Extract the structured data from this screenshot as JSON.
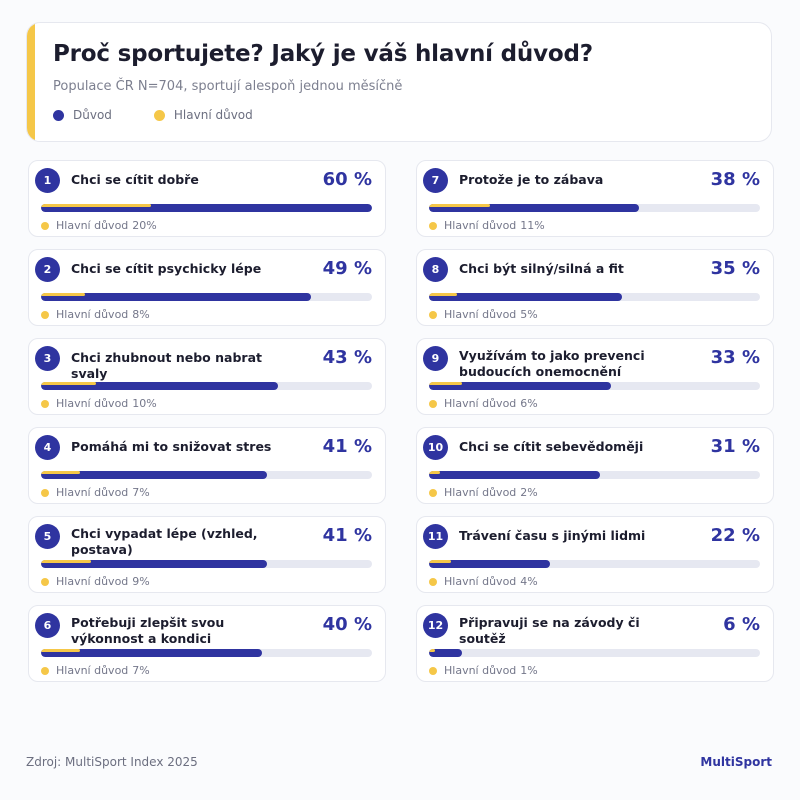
{
  "header": {
    "title": "Proč sportujete? Jaký je váš hlavní důvod?",
    "subtitle": "Populace ČR N=704, sportují alespoň jednou měsíčně"
  },
  "legend": [
    {
      "label": "Důvod",
      "color": "#2f34a0"
    },
    {
      "label": "Hlavní důvod",
      "color": "#f5c748"
    }
  ],
  "chart_data": {
    "type": "bar",
    "unit": "%",
    "key_prefix": "Hlavní důvod",
    "items": [
      {
        "rank": "1",
        "label": "Chci se cítit dobře",
        "value": 60,
        "key_value": 20
      },
      {
        "rank": "2",
        "label": "Chci se cítit psychicky lépe",
        "value": 49,
        "key_value": 8
      },
      {
        "rank": "3",
        "label": "Chci zhubnout nebo nabrat svaly",
        "value": 43,
        "key_value": 10
      },
      {
        "rank": "4",
        "label": "Pomáhá mi to snižovat stres",
        "value": 41,
        "key_value": 7
      },
      {
        "rank": "5",
        "label": "Chci vypadat lépe (vzhled, postava)",
        "value": 41,
        "key_value": 9
      },
      {
        "rank": "6",
        "label": "Potřebuji zlepšit svou výkonnost a kondici",
        "value": 40,
        "key_value": 7
      },
      {
        "rank": "7",
        "label": "Protože je to zábava",
        "value": 38,
        "key_value": 11
      },
      {
        "rank": "8",
        "label": "Chci být silný/silná a fit",
        "value": 35,
        "key_value": 5
      },
      {
        "rank": "9",
        "label": "Využívám to jako prevenci budoucích onemocnění",
        "value": 33,
        "key_value": 6
      },
      {
        "rank": "10",
        "label": "Chci se cítit sebevědoměji",
        "value": 31,
        "key_value": 2
      },
      {
        "rank": "11",
        "label": "Trávení času s jinými lidmi",
        "value": 22,
        "key_value": 4
      },
      {
        "rank": "12",
        "label": "Připravuji se na závody či soutěž",
        "value": 6,
        "key_value": 1
      }
    ]
  },
  "footer": {
    "source": "Zdroj: MultiSport Index 2025",
    "brand": "MultiSport"
  }
}
